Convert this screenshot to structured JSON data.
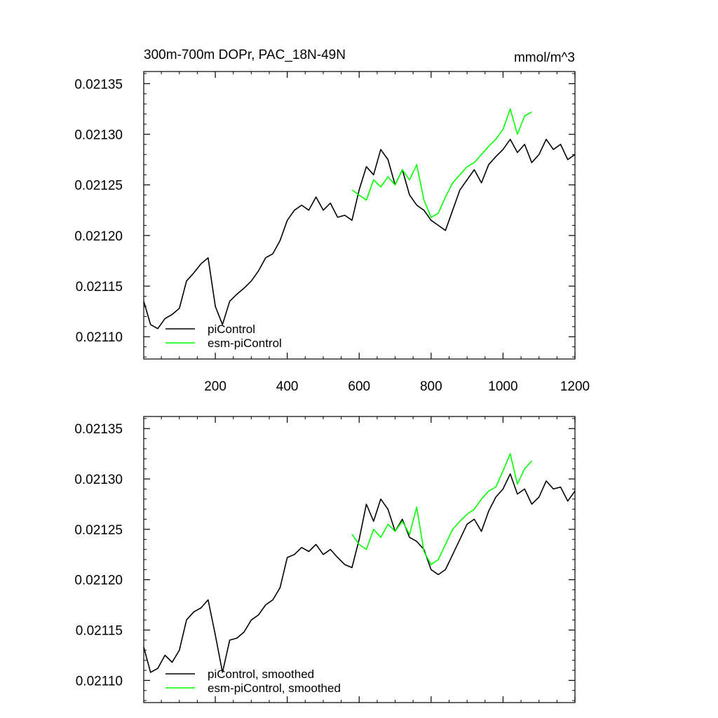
{
  "chart_data": [
    {
      "type": "line",
      "title": "300m-700m DOPr, PAC_18N-49N",
      "units": "mmol/m^3",
      "xlabel": "",
      "ylabel": "",
      "xlim": [
        1,
        1200
      ],
      "ylim": [
        0.021078,
        0.021362
      ],
      "x_ticks": [
        200,
        400,
        600,
        800,
        1000,
        1200
      ],
      "y_ticks": [
        "0.02110",
        "0.02115",
        "0.02120",
        "0.02125",
        "0.02130",
        "0.02135"
      ],
      "series": [
        {
          "name": "piControl",
          "color": "#000000",
          "x": [
            1,
            20,
            40,
            60,
            80,
            100,
            120,
            140,
            160,
            180,
            200,
            220,
            240,
            260,
            280,
            300,
            320,
            340,
            360,
            380,
            400,
            420,
            440,
            460,
            480,
            500,
            520,
            540,
            560,
            580,
            600,
            620,
            640,
            660,
            680,
            700,
            720,
            740,
            760,
            780,
            800,
            820,
            840,
            860,
            880,
            900,
            920,
            940,
            960,
            980,
            1000,
            1020,
            1040,
            1060,
            1080,
            1100,
            1120,
            1140,
            1160,
            1180,
            1200
          ],
          "values": [
            0.021135,
            0.021112,
            0.021108,
            0.021118,
            0.021122,
            0.021128,
            0.021155,
            0.021163,
            0.021172,
            0.021178,
            0.02113,
            0.021112,
            0.021135,
            0.021142,
            0.021148,
            0.021155,
            0.021165,
            0.021178,
            0.021182,
            0.021195,
            0.021215,
            0.021225,
            0.02123,
            0.021225,
            0.021238,
            0.021225,
            0.021232,
            0.021218,
            0.02122,
            0.021215,
            0.021245,
            0.021268,
            0.02126,
            0.021285,
            0.021275,
            0.02125,
            0.021265,
            0.02124,
            0.02123,
            0.021225,
            0.021215,
            0.02121,
            0.021205,
            0.021225,
            0.021245,
            0.021255,
            0.021265,
            0.021252,
            0.02127,
            0.021278,
            0.021285,
            0.021295,
            0.021282,
            0.02129,
            0.021272,
            0.02128,
            0.021295,
            0.021285,
            0.02129,
            0.021275,
            0.02128
          ]
        },
        {
          "name": "esm-piControl",
          "color": "#00ff00",
          "x": [
            580,
            600,
            620,
            640,
            660,
            680,
            700,
            720,
            740,
            760,
            780,
            800,
            820,
            840,
            860,
            880,
            900,
            920,
            940,
            960,
            980,
            1000,
            1020,
            1040,
            1060,
            1080
          ],
          "values": [
            0.021245,
            0.02124,
            0.021235,
            0.021255,
            0.021248,
            0.021258,
            0.02125,
            0.021265,
            0.021255,
            0.02127,
            0.021235,
            0.021218,
            0.021222,
            0.021238,
            0.021252,
            0.02126,
            0.021268,
            0.021272,
            0.02128,
            0.021288,
            0.021295,
            0.021305,
            0.021325,
            0.0213,
            0.021318,
            0.021322
          ]
        }
      ],
      "legend": [
        "piControl",
        "esm-piControl"
      ],
      "legend_position": "bottom-left"
    },
    {
      "type": "line",
      "title": "",
      "xlabel": "",
      "ylabel": "",
      "xlim": [
        1,
        1200
      ],
      "ylim": [
        0.021078,
        0.021362
      ],
      "x_ticks": [
        200,
        400,
        600,
        800,
        1000,
        1200
      ],
      "y_ticks": [
        "0.02110",
        "0.02115",
        "0.02120",
        "0.02125",
        "0.02130",
        "0.02135"
      ],
      "series": [
        {
          "name": "piControl, smoothed",
          "color": "#000000",
          "x": [
            1,
            20,
            40,
            60,
            80,
            100,
            120,
            140,
            160,
            180,
            200,
            220,
            240,
            260,
            280,
            300,
            320,
            340,
            360,
            380,
            400,
            420,
            440,
            460,
            480,
            500,
            520,
            540,
            560,
            580,
            600,
            620,
            640,
            660,
            680,
            700,
            720,
            740,
            760,
            780,
            800,
            820,
            840,
            860,
            880,
            900,
            920,
            940,
            960,
            980,
            1000,
            1020,
            1040,
            1060,
            1080,
            1100,
            1120,
            1140,
            1160,
            1180,
            1200
          ],
          "values": [
            0.021133,
            0.021108,
            0.021112,
            0.021125,
            0.021118,
            0.02113,
            0.02116,
            0.021168,
            0.021172,
            0.02118,
            0.021145,
            0.021108,
            0.02114,
            0.021142,
            0.021148,
            0.02116,
            0.021165,
            0.021175,
            0.02118,
            0.021192,
            0.021222,
            0.021225,
            0.021232,
            0.021228,
            0.021235,
            0.021225,
            0.02123,
            0.021222,
            0.021215,
            0.021212,
            0.02124,
            0.021275,
            0.021258,
            0.02128,
            0.02127,
            0.021248,
            0.02126,
            0.021242,
            0.021238,
            0.02123,
            0.02121,
            0.021205,
            0.02121,
            0.021225,
            0.02124,
            0.021255,
            0.02126,
            0.021248,
            0.021268,
            0.021282,
            0.02129,
            0.021305,
            0.021285,
            0.02129,
            0.021275,
            0.021282,
            0.021298,
            0.02129,
            0.021292,
            0.021278,
            0.021288
          ]
        },
        {
          "name": "esm-piControl, smoothed",
          "color": "#00ff00",
          "x": [
            580,
            600,
            620,
            640,
            660,
            680,
            700,
            720,
            740,
            760,
            780,
            800,
            820,
            840,
            860,
            880,
            900,
            920,
            940,
            960,
            980,
            1000,
            1020,
            1040,
            1060,
            1080
          ],
          "values": [
            0.021245,
            0.021235,
            0.02123,
            0.02125,
            0.021242,
            0.021255,
            0.021248,
            0.021258,
            0.021245,
            0.021272,
            0.021228,
            0.021215,
            0.02122,
            0.021235,
            0.02125,
            0.021258,
            0.021265,
            0.02127,
            0.02128,
            0.021288,
            0.021292,
            0.021308,
            0.021325,
            0.021295,
            0.02131,
            0.021318
          ]
        }
      ],
      "legend": [
        "piControl, smoothed",
        "esm-piControl, smoothed"
      ],
      "legend_position": "bottom-left"
    }
  ]
}
